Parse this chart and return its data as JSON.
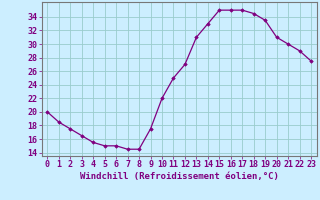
{
  "hours": [
    0,
    1,
    2,
    3,
    4,
    5,
    6,
    7,
    8,
    9,
    10,
    11,
    12,
    13,
    14,
    15,
    16,
    17,
    18,
    19,
    20,
    21,
    22,
    23
  ],
  "values": [
    20,
    18.5,
    17.5,
    16.5,
    15.5,
    15,
    15,
    14.5,
    14.5,
    17.5,
    22,
    25,
    27,
    31,
    33,
    35,
    35,
    35,
    34.5,
    33.5,
    31,
    30,
    29,
    27.5
  ],
  "line_color": "#800080",
  "marker": "D",
  "marker_size": 1.8,
  "bg_color": "#cceeff",
  "grid_color": "#99cccc",
  "ylabel_ticks": [
    14,
    16,
    18,
    20,
    22,
    24,
    26,
    28,
    30,
    32,
    34
  ],
  "ylim": [
    13.5,
    36.2
  ],
  "xlim": [
    -0.5,
    23.5
  ],
  "xlabel": "Windchill (Refroidissement éolien,°C)",
  "xlabel_fontsize": 6.5,
  "tick_fontsize": 6.0,
  "line_width": 0.9
}
